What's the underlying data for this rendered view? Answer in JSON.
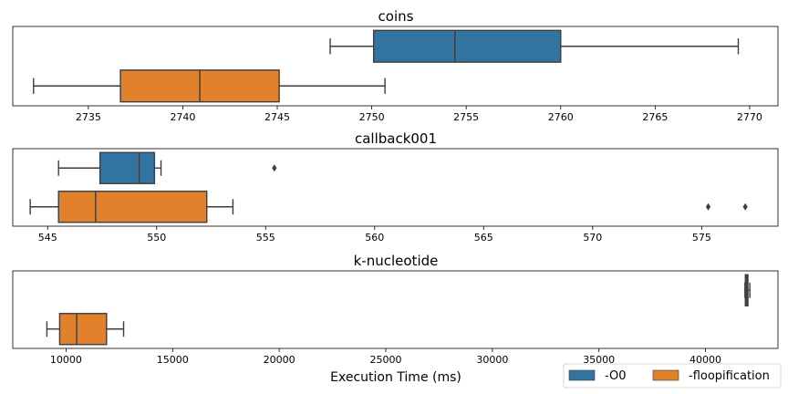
{
  "figure": {
    "xlabel": "Execution Time (ms)"
  },
  "legend": {
    "placement": "bottom-right",
    "entries": [
      {
        "label": "-O0",
        "color": "#3274a1"
      },
      {
        "label": "-floopification",
        "color": "#e1812c"
      }
    ]
  },
  "chart_data": [
    {
      "type": "boxplot",
      "title": "coins",
      "xlim": [
        2731,
        2771.5
      ],
      "ticks": [
        2735,
        2740,
        2745,
        2750,
        2755,
        2760,
        2765,
        2770
      ],
      "tick_labels": [
        "2735",
        "2740",
        "2745",
        "2750",
        "2755",
        "2760",
        "2765",
        "2770"
      ],
      "series": [
        {
          "name": "-O0",
          "whisker_low": 2747.8,
          "q1": 2750.1,
          "median": 2754.4,
          "q3": 2760.0,
          "whisker_high": 2769.4,
          "outliers": []
        },
        {
          "name": "-floopification",
          "whisker_low": 2732.1,
          "q1": 2736.7,
          "median": 2740.9,
          "q3": 2745.1,
          "whisker_high": 2750.7,
          "outliers": []
        }
      ]
    },
    {
      "type": "boxplot",
      "title": "callback001",
      "xlim": [
        543.4,
        578.5
      ],
      "ticks": [
        545,
        550,
        555,
        560,
        565,
        570,
        575
      ],
      "tick_labels": [
        "545",
        "550",
        "555",
        "560",
        "565",
        "570",
        "575"
      ],
      "series": [
        {
          "name": "-O0",
          "whisker_low": 545.5,
          "q1": 547.4,
          "median": 549.2,
          "q3": 549.9,
          "whisker_high": 550.2,
          "outliers": [
            555.4
          ]
        },
        {
          "name": "-floopification",
          "whisker_low": 544.2,
          "q1": 545.5,
          "median": 547.2,
          "q3": 552.3,
          "whisker_high": 553.5,
          "outliers": [
            575.3,
            577.0
          ]
        }
      ]
    },
    {
      "type": "boxplot",
      "title": "k-nucleotide",
      "xlim": [
        7500,
        43400
      ],
      "ticks": [
        10000,
        15000,
        20000,
        25000,
        30000,
        35000,
        40000
      ],
      "tick_labels": [
        "10000",
        "15000",
        "20000",
        "25000",
        "30000",
        "35000",
        "40000"
      ],
      "series": [
        {
          "name": "-O0",
          "whisker_low": 41850,
          "q1": 41870,
          "median": 41940,
          "q3": 41990,
          "whisker_high": 42080,
          "outliers": []
        },
        {
          "name": "-floopification",
          "whisker_low": 9100,
          "q1": 9700,
          "median": 10500,
          "q3": 11900,
          "whisker_high": 12700,
          "outliers": []
        }
      ]
    }
  ]
}
